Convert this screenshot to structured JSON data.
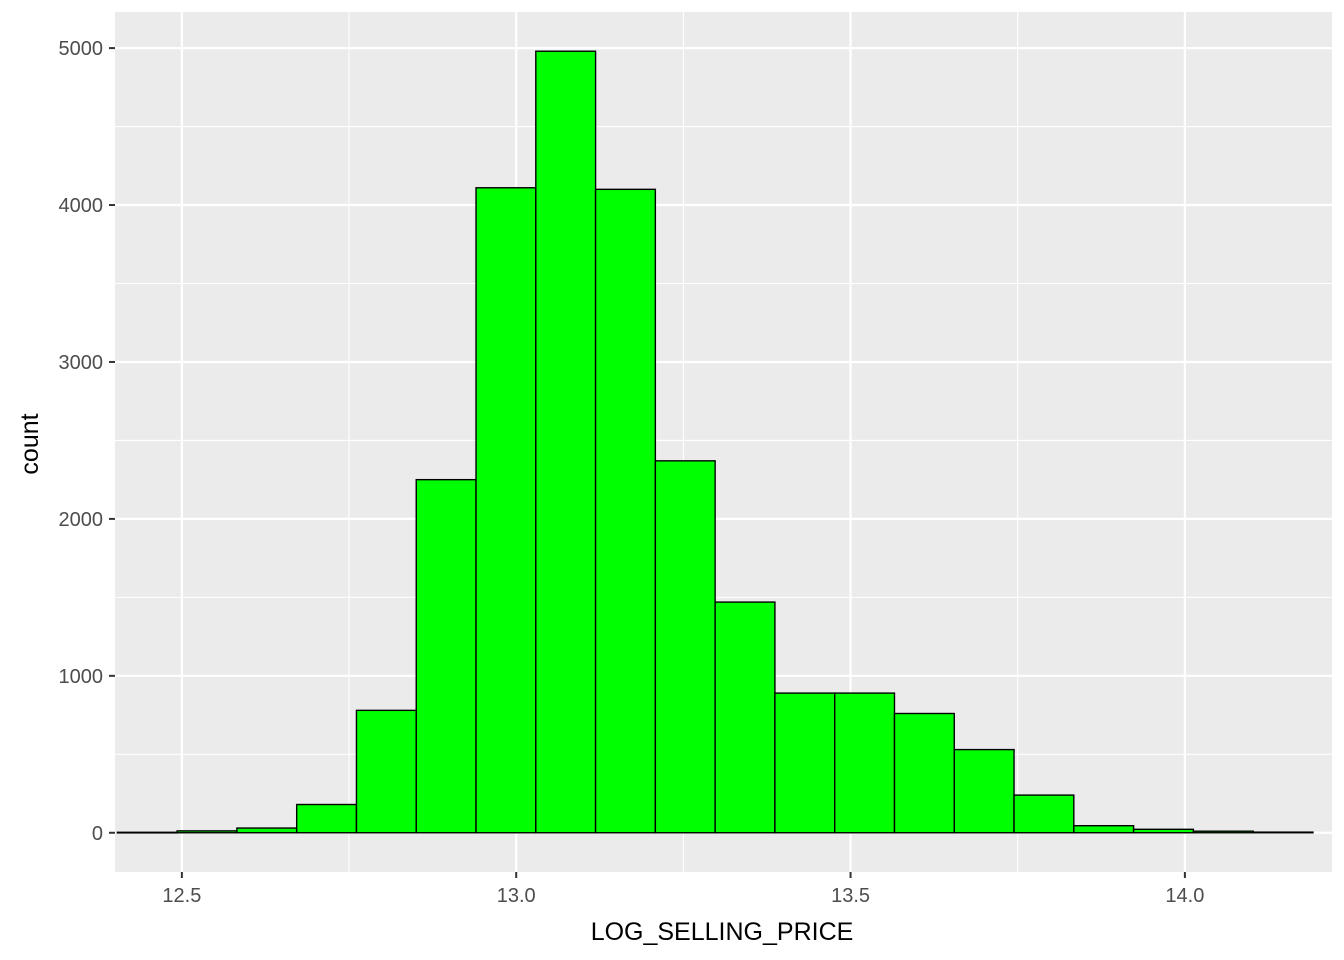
{
  "chart_data": {
    "type": "bar",
    "xlabel": "LOG_SELLING_PRICE",
    "ylabel": "count",
    "xlim": [
      12.4,
      14.22
    ],
    "ylim": [
      -250,
      5230
    ],
    "x_ticks": [
      12.5,
      13.0,
      13.5,
      14.0
    ],
    "x_tick_labels": [
      "12.5",
      "13.0",
      "13.5",
      "14.0"
    ],
    "y_ticks": [
      0,
      1000,
      2000,
      3000,
      4000,
      5000
    ],
    "y_tick_labels": [
      "0",
      "1000",
      "2000",
      "3000",
      "4000",
      "5000"
    ],
    "grid": true,
    "panel_color": "#ebebeb",
    "bar_fill": "#00ff00",
    "bar_outline": "#000000",
    "bin_width": 0.0894,
    "bins": [
      {
        "x0": 12.4035,
        "x1": 12.4929,
        "count": 3
      },
      {
        "x0": 12.4929,
        "x1": 12.5823,
        "count": 12
      },
      {
        "x0": 12.5823,
        "x1": 12.6717,
        "count": 30
      },
      {
        "x0": 12.6717,
        "x1": 12.7611,
        "count": 180
      },
      {
        "x0": 12.7611,
        "x1": 12.8505,
        "count": 780
      },
      {
        "x0": 12.8505,
        "x1": 12.9399,
        "count": 2250
      },
      {
        "x0": 12.9399,
        "x1": 13.0293,
        "count": 4110
      },
      {
        "x0": 13.0293,
        "x1": 13.1187,
        "count": 4980
      },
      {
        "x0": 13.1187,
        "x1": 13.2081,
        "count": 4100
      },
      {
        "x0": 13.2081,
        "x1": 13.2975,
        "count": 2370
      },
      {
        "x0": 13.2975,
        "x1": 13.3869,
        "count": 1470
      },
      {
        "x0": 13.3869,
        "x1": 13.4763,
        "count": 890
      },
      {
        "x0": 13.4763,
        "x1": 13.5657,
        "count": 890
      },
      {
        "x0": 13.5657,
        "x1": 13.6551,
        "count": 760
      },
      {
        "x0": 13.6551,
        "x1": 13.7445,
        "count": 530
      },
      {
        "x0": 13.7445,
        "x1": 13.8339,
        "count": 240
      },
      {
        "x0": 13.8339,
        "x1": 13.9233,
        "count": 45
      },
      {
        "x0": 13.9233,
        "x1": 14.0127,
        "count": 22
      },
      {
        "x0": 14.0127,
        "x1": 14.1021,
        "count": 10
      },
      {
        "x0": 14.1021,
        "x1": 14.1915,
        "count": 4
      }
    ]
  }
}
